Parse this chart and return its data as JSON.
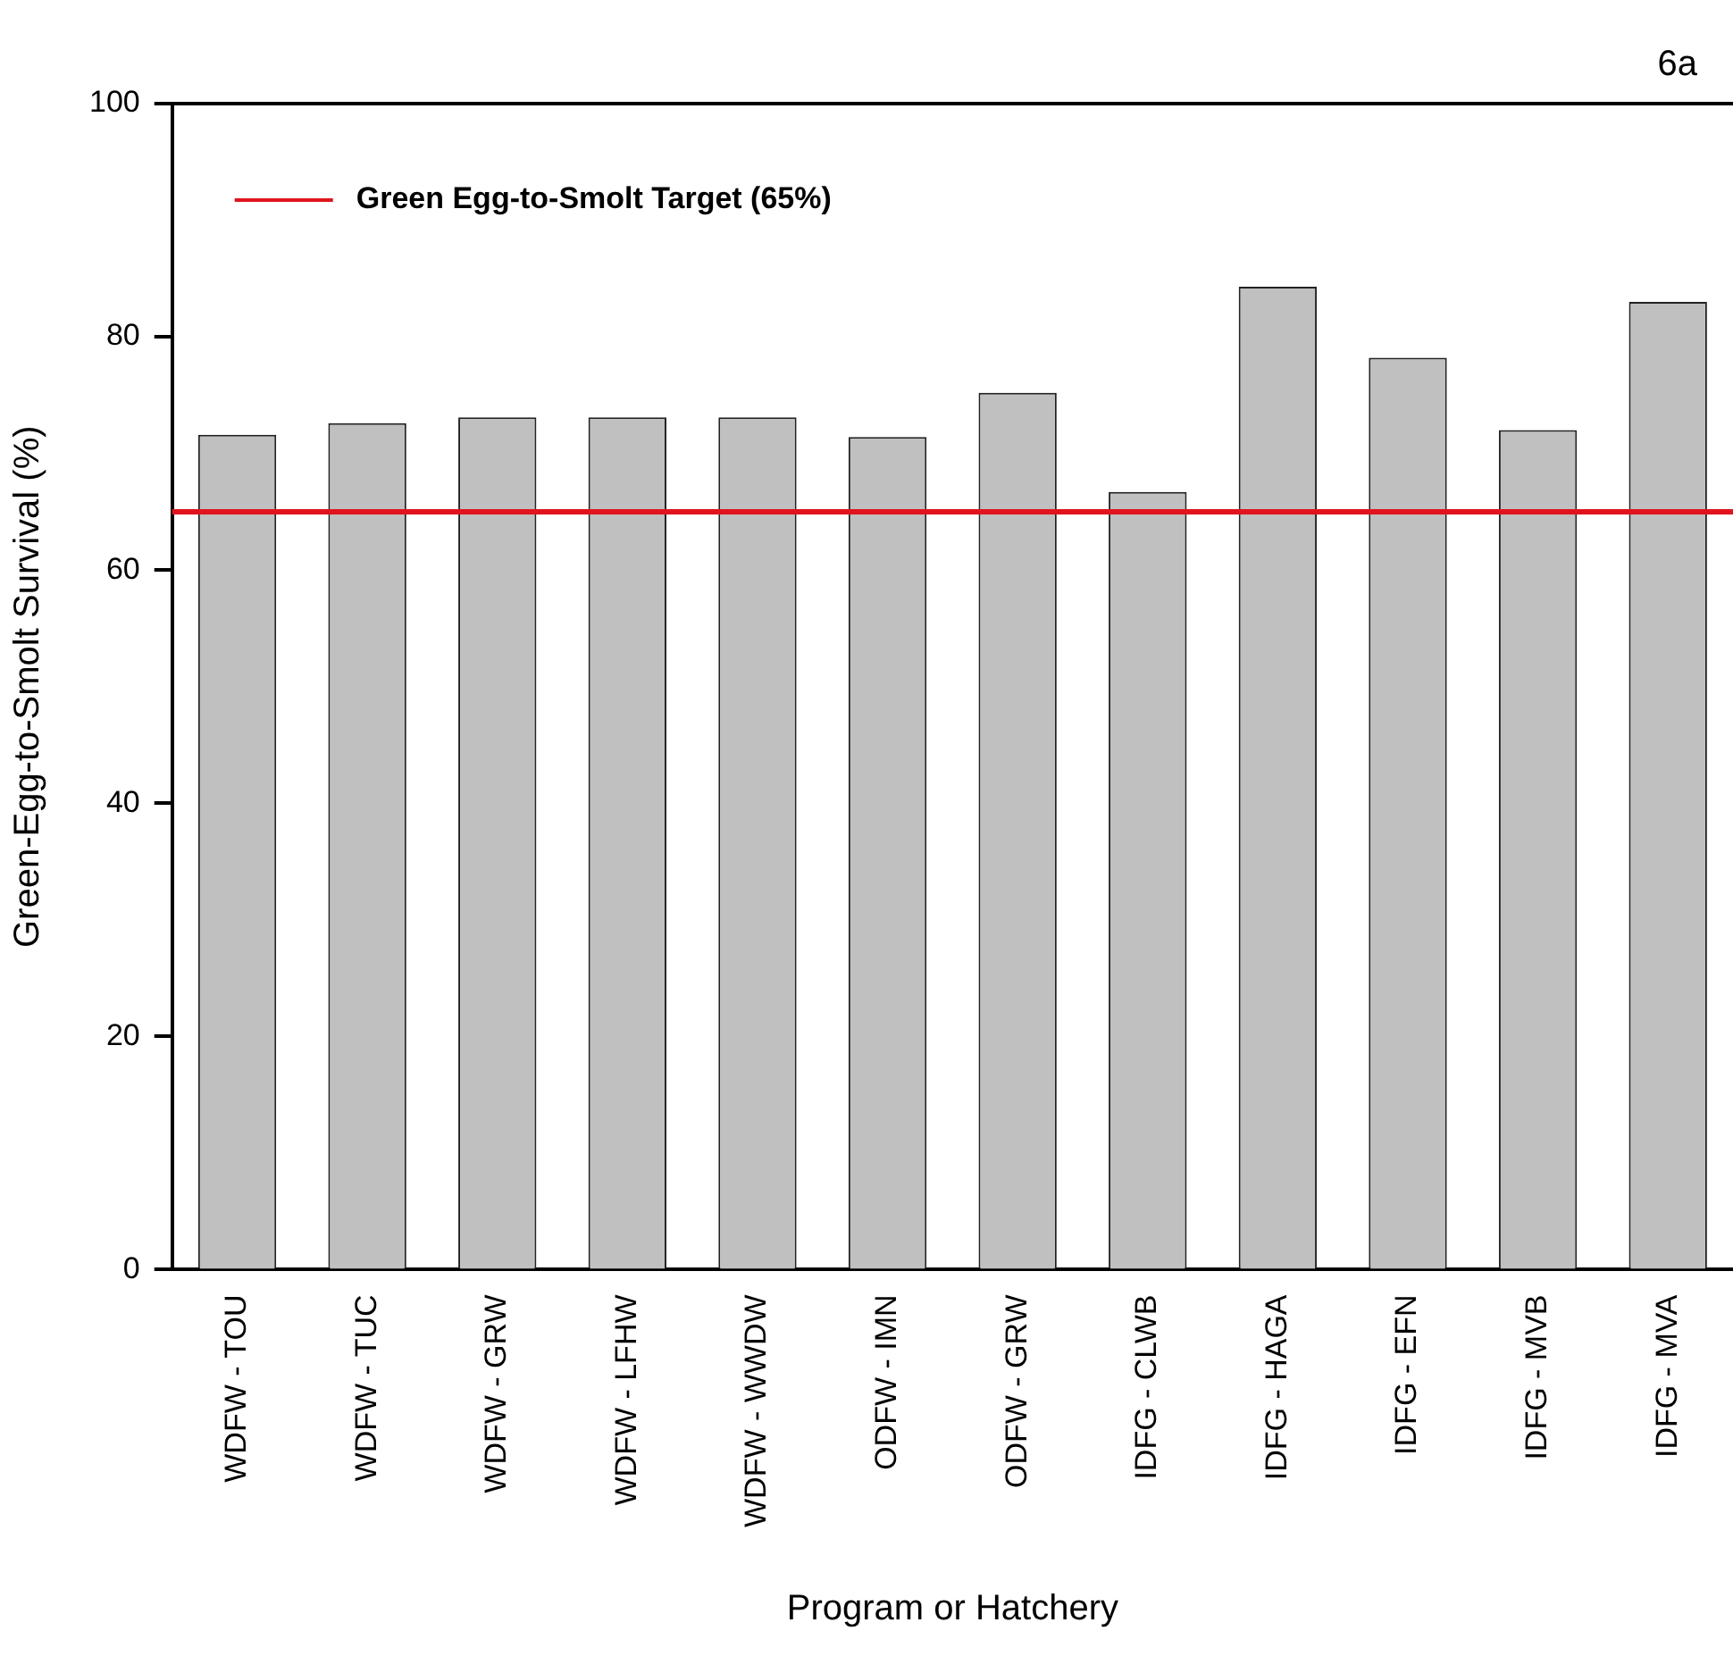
{
  "chart_data": {
    "type": "bar",
    "xlabel": "Program or Hatchery",
    "ylabel": "Green-Egg-to-Smolt Survival (%)",
    "annotations": [
      "6a"
    ],
    "categories": [
      "WDFW - TOU",
      "WDFW - TUC",
      "WDFW - GRW",
      "WDFW - LFHW",
      "WDFW - WWDW",
      "ODFW - IMN",
      "ODFW - GRW",
      "IDFG - CLWB",
      "IDFG - HAGA",
      "IDFG - EFN",
      "IDFG - MVB",
      "IDFG - MVA"
    ],
    "values": [
      71.6,
      72.6,
      73.1,
      73.1,
      73.1,
      71.4,
      75.2,
      66.7,
      84.3,
      78.2,
      72.0,
      83.0
    ],
    "color": "#c0c0c0",
    "ylim": [
      0,
      100
    ],
    "yticks": [
      0,
      20,
      40,
      60,
      80,
      100
    ],
    "ref_lines": [
      {
        "axis": "y",
        "value": 65,
        "label": "Green Egg-to-Smolt Target (65%)",
        "color": "#e0141e"
      }
    ],
    "grid": false
  }
}
